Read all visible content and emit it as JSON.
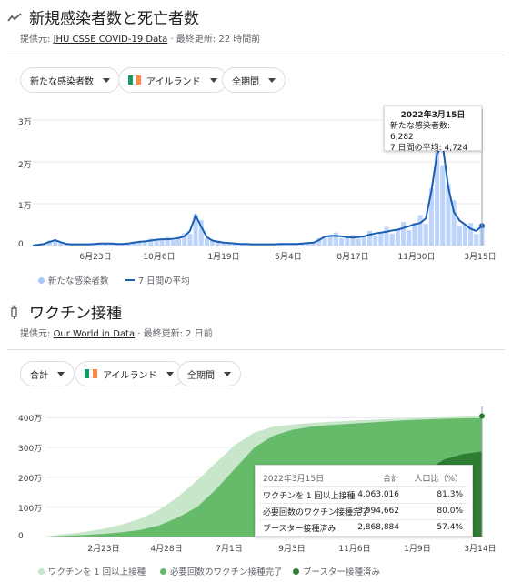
{
  "section1": {
    "title": "新規感染者数と死亡者数",
    "source_prefix": "提供元: ",
    "source_link": "JHU CSSE COVID-19 Data",
    "source_suffix": " · 最終更新: 22 時間前",
    "chips": [
      "新たな感染者数",
      "アイルランド",
      "全期間"
    ],
    "tooltip": {
      "date": "2022年3月15日",
      "line1": "新たな感染者数: 6,282",
      "line2": "7 日間の平均: 4,724"
    },
    "legend": [
      "新たな感染者数",
      "7 日間の平均"
    ]
  },
  "section2": {
    "title": "ワクチン接種",
    "source_prefix": "提供元: ",
    "source_link": "Our World in Data",
    "source_suffix": " · 最終更新: 2 日前",
    "chips": [
      "合計",
      "アイルランド",
      "全期間"
    ],
    "tooltip": {
      "date": "2022年3月15日",
      "col_total": "合計",
      "col_pct": "人口比（%）",
      "rows": [
        {
          "label": "ワクチンを 1 回以上接種",
          "total": "4,063,016",
          "pct": "81.3%"
        },
        {
          "label": "必要回数のワクチン接種完了",
          "total": "3,994,662",
          "pct": "80.0%"
        },
        {
          "label": "ブースター接種済み",
          "total": "2,868,884",
          "pct": "57.4%"
        }
      ]
    },
    "legend": [
      "ワクチンを 1 回以上接種",
      "必要回数のワクチン接種完了",
      "ブースター接種済み"
    ]
  },
  "colors": {
    "case_bar": "#a8c7fa",
    "case_line": "#1a5fb4",
    "vac1": "#c8e6c9",
    "vac2": "#66bb6a",
    "vac3": "#2e7d32",
    "flag": [
      "#169b62",
      "#ffffff",
      "#ff883e"
    ]
  },
  "chart_data": [
    {
      "type": "line",
      "title": "新規感染者数と死亡者数",
      "y_ticks": [
        "0",
        "1万",
        "2万",
        "3万"
      ],
      "x_ticks": [
        "6月23日",
        "10月6日",
        "1月19日",
        "5月4日",
        "8月17日",
        "11月30日",
        "3月15日"
      ],
      "ylim": [
        0,
        30000
      ],
      "series": [
        {
          "name": "新たな感染者数",
          "kind": "bar"
        },
        {
          "name": "7 日間の平均",
          "kind": "line",
          "values": [
            0,
            200,
            400,
            900,
            1300,
            800,
            400,
            300,
            300,
            300,
            300,
            400,
            500,
            500,
            500,
            400,
            400,
            500,
            700,
            900,
            1000,
            1200,
            1400,
            1500,
            1500,
            1600,
            1800,
            2200,
            3500,
            7200,
            4500,
            2000,
            1200,
            900,
            700,
            600,
            500,
            400,
            400,
            300,
            300,
            300,
            300,
            300,
            400,
            400,
            400,
            400,
            500,
            600,
            700,
            1300,
            2100,
            2300,
            2300,
            2200,
            2000,
            1900,
            2000,
            2200,
            2600,
            2900,
            3100,
            3300,
            3600,
            3800,
            4200,
            4600,
            5100,
            5400,
            6500,
            13000,
            22000,
            24000,
            14000,
            8000,
            6000,
            5000,
            4000,
            3500,
            4724
          ]
        }
      ]
    },
    {
      "type": "area",
      "title": "ワクチン接種",
      "y_ticks": [
        "0",
        "100万",
        "200万",
        "300万",
        "400万"
      ],
      "x_ticks": [
        "2月23日",
        "4月28日",
        "7月1日",
        "9月3日",
        "11月6日",
        "1月9日",
        "3月14日"
      ],
      "ylim": [
        0,
        4200000
      ],
      "series": [
        {
          "name": "ワクチンを 1 回以上接種",
          "values": [
            0,
            80000,
            150000,
            250000,
            400000,
            600000,
            900000,
            1350000,
            1900000,
            2500000,
            3100000,
            3500000,
            3700000,
            3780000,
            3830000,
            3870000,
            3900000,
            3930000,
            3960000,
            3980000,
            4000000,
            4020000,
            4040000,
            4063016
          ]
        },
        {
          "name": "必要回数のワクチン接種完了",
          "values": [
            0,
            20000,
            50000,
            90000,
            140000,
            220000,
            380000,
            650000,
            1000000,
            1600000,
            2300000,
            3000000,
            3400000,
            3600000,
            3700000,
            3760000,
            3800000,
            3840000,
            3880000,
            3920000,
            3950000,
            3970000,
            3985000,
            3994662
          ]
        },
        {
          "name": "ブースター接種済み",
          "values": [
            0,
            0,
            0,
            0,
            0,
            0,
            0,
            0,
            0,
            0,
            0,
            0,
            0,
            0,
            0,
            0,
            50000,
            150000,
            400000,
            1100000,
            2200000,
            2600000,
            2780000,
            2868884
          ]
        }
      ]
    }
  ]
}
